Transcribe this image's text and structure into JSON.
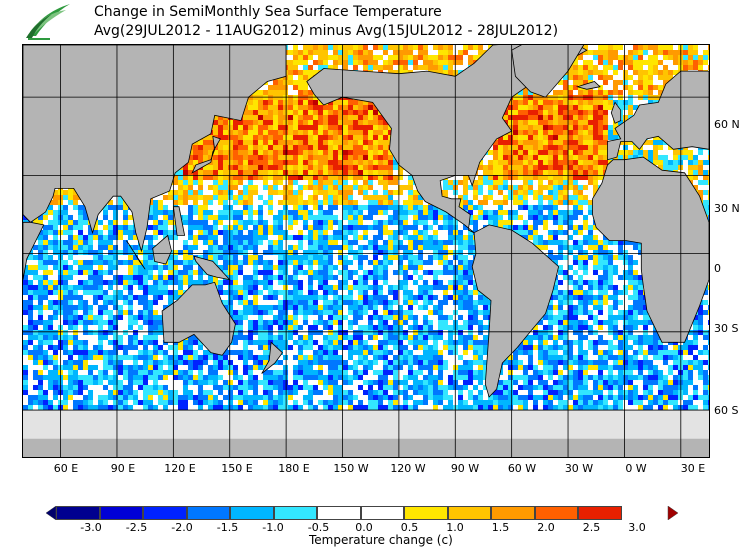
{
  "title": {
    "line1": "Change in SemiMonthly Sea Surface Temperature",
    "line2": "Avg(29JUL2012 - 11AUG2012) minus Avg(15JUL2012 - 28JUL2012)"
  },
  "map": {
    "land_color": "#b4b4b4",
    "ice_color": "#e3e3e3",
    "lat_labels": [
      "60 N",
      "30 N",
      "0",
      "30 S",
      "60 S"
    ],
    "lon_labels": [
      "60 E",
      "90 E",
      "120 E",
      "150 E",
      "180 E",
      "150 W",
      "120 W",
      "90 W",
      "60 W",
      "30 W",
      "0 W",
      "30 E"
    ]
  },
  "colorbar": {
    "label": "Temperature change  (c)",
    "ticks": [
      "-3.0",
      "-2.5",
      "-2.0",
      "-1.5",
      "-1.0",
      "-0.5",
      "0.0",
      "0.5",
      "1.0",
      "1.5",
      "2.0",
      "2.5",
      "3.0"
    ],
    "colors": [
      "#00008f",
      "#0000d6",
      "#0022ff",
      "#0077ff",
      "#00b6ff",
      "#33e6ff",
      "#ffffff",
      "#ffe600",
      "#ffc400",
      "#ff9a00",
      "#ff6000",
      "#e82000",
      "#c00000"
    ]
  }
}
